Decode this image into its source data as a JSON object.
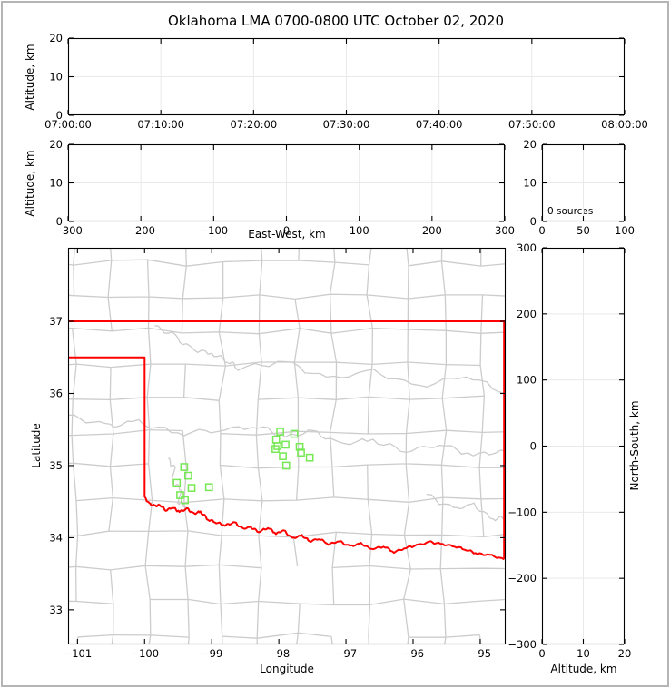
{
  "title": "Oklahoma LMA 0700-0800 UTC October 02, 2020",
  "colors": {
    "background": "#ffffff",
    "outer_border": "#b5b5b5",
    "frame": "#000000",
    "grid": "#e9e9e9",
    "county_lines": "#cccccc",
    "state_border": "#ff0000",
    "stations": "#76e854"
  },
  "chart_data": [
    {
      "id": "time_height_panel",
      "type": "scatter",
      "xlabel": "",
      "ylabel": "Altitude, km",
      "xlim": [
        0,
        3600
      ],
      "ylim": [
        0,
        20
      ],
      "xticks": [
        {
          "v": 0,
          "label": "07:00:00"
        },
        {
          "v": 600,
          "label": "07:10:00"
        },
        {
          "v": 1200,
          "label": "07:20:00"
        },
        {
          "v": 1800,
          "label": "07:30:00"
        },
        {
          "v": 2400,
          "label": "07:40:00"
        },
        {
          "v": 3000,
          "label": "07:50:00"
        },
        {
          "v": 3600,
          "label": "08:00:00"
        }
      ],
      "yticks": [
        {
          "v": 0,
          "label": "0"
        },
        {
          "v": 10,
          "label": "10"
        },
        {
          "v": 20,
          "label": "20"
        }
      ],
      "points": []
    },
    {
      "id": "ew_height_panel",
      "type": "scatter",
      "xlabel": "East-West, km",
      "ylabel": "Altitude, km",
      "xlim": [
        -300,
        300
      ],
      "ylim": [
        0,
        20
      ],
      "xticks": [
        {
          "v": -300,
          "label": "−300"
        },
        {
          "v": -200,
          "label": "−200"
        },
        {
          "v": -100,
          "label": "−100"
        },
        {
          "v": 0,
          "label": "0"
        },
        {
          "v": 100,
          "label": "100"
        },
        {
          "v": 200,
          "label": "200"
        },
        {
          "v": 300,
          "label": "300"
        }
      ],
      "yticks": [
        {
          "v": 0,
          "label": "0"
        },
        {
          "v": 10,
          "label": "10"
        },
        {
          "v": 20,
          "label": "20"
        }
      ],
      "points": []
    },
    {
      "id": "alt_histogram_panel",
      "type": "line",
      "annotation": "0 sources",
      "xlabel": "",
      "ylabel": "",
      "xlim": [
        0,
        100
      ],
      "ylim": [
        0,
        20
      ],
      "xticks": [
        {
          "v": 0,
          "label": "0"
        },
        {
          "v": 50,
          "label": "50"
        },
        {
          "v": 100,
          "label": "100"
        }
      ],
      "yticks": [
        {
          "v": 0,
          "label": "0"
        },
        {
          "v": 10,
          "label": "10"
        },
        {
          "v": 20,
          "label": "20"
        }
      ],
      "points": []
    },
    {
      "id": "plan_view_panel",
      "type": "scatter",
      "xlabel": "Longitude",
      "ylabel": "Latitude",
      "xlim": [
        -101.14,
        -94.62
      ],
      "ylim": [
        32.52,
        38.02
      ],
      "xticks": [
        {
          "v": -101,
          "label": "−101"
        },
        {
          "v": -100,
          "label": "−100"
        },
        {
          "v": -99,
          "label": "−99"
        },
        {
          "v": -98,
          "label": "−98"
        },
        {
          "v": -97,
          "label": "−97"
        },
        {
          "v": -96,
          "label": "−96"
        },
        {
          "v": -95,
          "label": "−95"
        }
      ],
      "yticks": [
        {
          "v": 33,
          "label": "33"
        },
        {
          "v": 34,
          "label": "34"
        },
        {
          "v": 35,
          "label": "35"
        },
        {
          "v": 36,
          "label": "36"
        },
        {
          "v": 37,
          "label": "37"
        }
      ],
      "stations": [
        [
          -99.41,
          34.98
        ],
        [
          -99.35,
          34.86
        ],
        [
          -99.52,
          34.76
        ],
        [
          -99.3,
          34.69
        ],
        [
          -99.47,
          34.59
        ],
        [
          -99.4,
          34.52
        ],
        [
          -99.04,
          34.7
        ],
        [
          -97.98,
          35.47
        ],
        [
          -97.77,
          35.44
        ],
        [
          -98.04,
          35.36
        ],
        [
          -98.02,
          35.27
        ],
        [
          -97.9,
          35.29
        ],
        [
          -97.69,
          35.26
        ],
        [
          -98.05,
          35.23
        ],
        [
          -97.94,
          35.13
        ],
        [
          -97.67,
          35.18
        ],
        [
          -97.54,
          35.11
        ],
        [
          -97.89,
          35.0
        ]
      ],
      "state_border": [
        [
          [
            -101.14,
            37.0
          ],
          [
            -94.62,
            37.0
          ]
        ],
        [
          [
            -94.645,
            37.0
          ],
          [
            -94.645,
            33.7
          ]
        ],
        [
          [
            -101.14,
            36.5
          ],
          [
            -100.0,
            36.5
          ],
          [
            -100.0,
            34.56
          ]
        ],
        [
          [
            -100.0,
            34.56
          ],
          [
            -99.93,
            34.47
          ],
          [
            -99.84,
            34.44
          ],
          [
            -99.77,
            34.45
          ],
          [
            -99.68,
            34.38
          ],
          [
            -99.58,
            34.42
          ],
          [
            -99.48,
            34.36
          ],
          [
            -99.36,
            34.4
          ],
          [
            -99.27,
            34.33
          ],
          [
            -99.17,
            34.36
          ],
          [
            -99.05,
            34.25
          ],
          [
            -98.93,
            34.21
          ],
          [
            -98.8,
            34.17
          ],
          [
            -98.66,
            34.21
          ],
          [
            -98.54,
            34.12
          ],
          [
            -98.42,
            34.15
          ],
          [
            -98.3,
            34.08
          ],
          [
            -98.16,
            34.14
          ],
          [
            -98.04,
            34.06
          ],
          [
            -97.93,
            34.1
          ],
          [
            -97.8,
            33.99
          ],
          [
            -97.66,
            34.03
          ],
          [
            -97.54,
            33.95
          ],
          [
            -97.4,
            33.99
          ],
          [
            -97.26,
            33.91
          ],
          [
            -97.1,
            33.95
          ],
          [
            -96.94,
            33.88
          ],
          [
            -96.78,
            33.92
          ],
          [
            -96.62,
            33.84
          ],
          [
            -96.44,
            33.88
          ],
          [
            -96.28,
            33.8
          ],
          [
            -96.1,
            33.86
          ],
          [
            -95.92,
            33.9
          ],
          [
            -95.74,
            33.94
          ],
          [
            -95.56,
            33.91
          ],
          [
            -95.38,
            33.88
          ],
          [
            -95.2,
            33.83
          ],
          [
            -95.04,
            33.78
          ],
          [
            -94.86,
            33.76
          ],
          [
            -94.645,
            33.7
          ]
        ]
      ],
      "rivers": [
        [
          [
            -99.85,
            36.94
          ],
          [
            -99.55,
            36.78
          ],
          [
            -99.3,
            36.62
          ],
          [
            -99.0,
            36.55
          ],
          [
            -98.75,
            36.45
          ],
          [
            -98.6,
            36.35
          ],
          [
            -97.9,
            36.45
          ],
          [
            -97.3,
            36.2
          ],
          [
            -96.6,
            36.3
          ],
          [
            -95.9,
            36.1
          ],
          [
            -95.2,
            36.25
          ],
          [
            -94.62,
            36.0
          ]
        ],
        [
          [
            -101.14,
            35.7
          ],
          [
            -100.6,
            35.55
          ],
          [
            -100.1,
            35.6
          ],
          [
            -99.5,
            35.45
          ],
          [
            -98.9,
            35.5
          ],
          [
            -98.3,
            35.55
          ],
          [
            -97.9,
            35.4
          ],
          [
            -97.5,
            35.47
          ],
          [
            -97.1,
            35.3
          ],
          [
            -96.6,
            35.35
          ],
          [
            -96.1,
            35.2
          ],
          [
            -95.6,
            35.3
          ],
          [
            -95.1,
            35.15
          ],
          [
            -94.62,
            35.2
          ]
        ],
        [
          [
            -99.65,
            35.1
          ],
          [
            -99.55,
            34.95
          ],
          [
            -99.6,
            34.8
          ],
          [
            -99.45,
            34.65
          ],
          [
            -99.5,
            34.5
          ],
          [
            -99.37,
            34.44
          ]
        ],
        [
          [
            -95.8,
            34.6
          ],
          [
            -95.4,
            34.4
          ],
          [
            -95.1,
            34.45
          ],
          [
            -94.8,
            34.25
          ],
          [
            -94.62,
            34.3
          ]
        ]
      ]
    },
    {
      "id": "ns_altitude_panel",
      "type": "scatter",
      "xlabel": "Altitude, km",
      "ylabel": "North-South, km",
      "xlim": [
        0,
        20
      ],
      "ylim": [
        -300,
        300
      ],
      "xticks": [
        {
          "v": 0,
          "label": "0"
        },
        {
          "v": 10,
          "label": "10"
        },
        {
          "v": 20,
          "label": "20"
        }
      ],
      "yticks": [
        {
          "v": 300,
          "label": "300"
        },
        {
          "v": 200,
          "label": "200"
        },
        {
          "v": 100,
          "label": "100"
        },
        {
          "v": 0,
          "label": "0"
        },
        {
          "v": -100,
          "label": "−100"
        },
        {
          "v": -200,
          "label": "−200"
        },
        {
          "v": -300,
          "label": "−300"
        }
      ],
      "points": []
    }
  ]
}
